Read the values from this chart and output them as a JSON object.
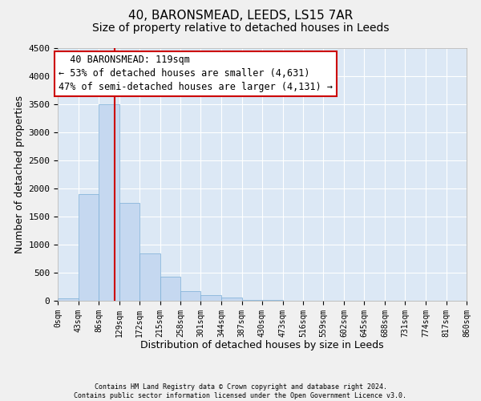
{
  "title": "40, BARONSMEAD, LEEDS, LS15 7AR",
  "subtitle": "Size of property relative to detached houses in Leeds",
  "xlabel": "Distribution of detached houses by size in Leeds",
  "ylabel": "Number of detached properties",
  "bin_edges": [
    0,
    43,
    86,
    129,
    172,
    215,
    258,
    301,
    344,
    387,
    430,
    473,
    516,
    559,
    602,
    645,
    688,
    731,
    774,
    817,
    860
  ],
  "bar_heights": [
    50,
    1900,
    3500,
    1750,
    850,
    430,
    175,
    100,
    60,
    20,
    10,
    5,
    5,
    5,
    5,
    5,
    5,
    5,
    5,
    5
  ],
  "bar_color": "#c5d8f0",
  "bar_edge_color": "#7aaed6",
  "property_size": 119,
  "red_line_color": "#cc0000",
  "annotation_line1": "  40 BARONSMEAD: 119sqm",
  "annotation_line2": "← 53% of detached houses are smaller (4,631)",
  "annotation_line3": "47% of semi-detached houses are larger (4,131) →",
  "annotation_box_color": "#ffffff",
  "annotation_box_edge": "#cc0000",
  "ylim": [
    0,
    4500
  ],
  "yticks": [
    0,
    500,
    1000,
    1500,
    2000,
    2500,
    3000,
    3500,
    4000,
    4500
  ],
  "footer_line1": "Contains HM Land Registry data © Crown copyright and database right 2024.",
  "footer_line2": "Contains public sector information licensed under the Open Government Licence v3.0.",
  "tick_labels": [
    "0sqm",
    "43sqm",
    "86sqm",
    "129sqm",
    "172sqm",
    "215sqm",
    "258sqm",
    "301sqm",
    "344sqm",
    "387sqm",
    "430sqm",
    "473sqm",
    "516sqm",
    "559sqm",
    "602sqm",
    "645sqm",
    "688sqm",
    "731sqm",
    "774sqm",
    "817sqm",
    "860sqm"
  ],
  "bg_color": "#dce8f5",
  "fig_bg_color": "#f0f0f0",
  "grid_color": "#ffffff",
  "title_fontsize": 11,
  "subtitle_fontsize": 10,
  "annotation_fontsize": 8.5
}
